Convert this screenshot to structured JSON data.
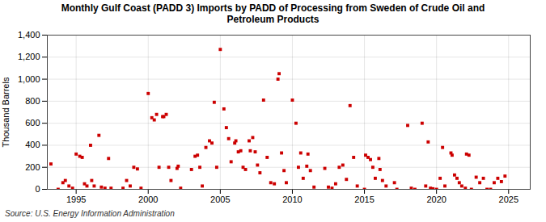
{
  "chart_data": {
    "type": "scatter",
    "title": "Monthly Gulf Coast (PADD 3) Imports by PADD of Processing from Sweden of Crude Oil and\nPetroleum Products",
    "ylabel": "Thousand Barrels",
    "caption": "Source: U.S. Energy Information Administration",
    "color": "#cc0000",
    "marker": "square",
    "grid": true,
    "xlim": [
      1993.0,
      2026.5
    ],
    "ylim": [
      0,
      1400
    ],
    "xticks": [
      1995,
      2000,
      2005,
      2010,
      2015,
      2020,
      2025
    ],
    "yticks": [
      0,
      200,
      400,
      600,
      800,
      {
        "value": 1000,
        "label": "1,000"
      },
      {
        "value": 1200,
        "label": "1,200"
      },
      {
        "value": 1400,
        "label": "1,400"
      }
    ],
    "x": [
      1993.25,
      1993.75,
      1994.08,
      1994.25,
      1994.5,
      1994.75,
      1995.0,
      1995.25,
      1995.42,
      1995.58,
      1995.75,
      1996.0,
      1996.08,
      1996.25,
      1996.58,
      1996.75,
      1997.0,
      1997.25,
      1997.42,
      1998.25,
      1998.5,
      1998.75,
      1999.0,
      1999.25,
      1999.5,
      2000.0,
      2000.25,
      2000.42,
      2000.58,
      2000.75,
      2001.0,
      2001.08,
      2001.25,
      2001.42,
      2001.58,
      2002.0,
      2002.08,
      2002.25,
      2003.0,
      2003.25,
      2003.42,
      2003.58,
      2003.75,
      2004.0,
      2004.25,
      2004.42,
      2004.58,
      2004.75,
      2005.0,
      2005.25,
      2005.42,
      2005.58,
      2005.75,
      2006.0,
      2006.08,
      2006.25,
      2006.42,
      2006.58,
      2006.75,
      2007.0,
      2007.08,
      2007.25,
      2007.42,
      2007.58,
      2007.75,
      2008.0,
      2008.25,
      2008.5,
      2008.75,
      2009.0,
      2009.08,
      2009.25,
      2009.42,
      2009.58,
      2010.0,
      2010.25,
      2010.42,
      2010.58,
      2010.75,
      2011.0,
      2011.08,
      2011.25,
      2011.5,
      2012.25,
      2012.5,
      2012.75,
      2013.0,
      2013.25,
      2013.5,
      2013.75,
      2014.0,
      2014.25,
      2014.5,
      2015.0,
      2015.08,
      2015.25,
      2015.42,
      2015.58,
      2015.75,
      2016.0,
      2016.08,
      2016.25,
      2016.5,
      2017.08,
      2017.25,
      2018.0,
      2018.25,
      2018.5,
      2019.0,
      2019.25,
      2019.42,
      2019.58,
      2019.75,
      2020.0,
      2020.25,
      2020.42,
      2020.58,
      2021.0,
      2021.08,
      2021.25,
      2021.42,
      2021.58,
      2021.75,
      2022.0,
      2022.08,
      2022.25,
      2022.42,
      2022.75,
      2023.0,
      2023.25,
      2023.5,
      2023.75,
      2024.0,
      2024.25,
      2024.5,
      2024.75
    ],
    "values": [
      230,
      0,
      60,
      80,
      30,
      10,
      320,
      300,
      290,
      50,
      30,
      400,
      80,
      30,
      490,
      20,
      10,
      280,
      10,
      10,
      80,
      30,
      200,
      185,
      10,
      870,
      650,
      630,
      680,
      200,
      660,
      660,
      680,
      200,
      80,
      190,
      210,
      10,
      180,
      300,
      310,
      200,
      30,
      380,
      440,
      420,
      790,
      200,
      1270,
      730,
      560,
      460,
      250,
      420,
      440,
      340,
      350,
      200,
      180,
      440,
      350,
      470,
      340,
      220,
      150,
      810,
      290,
      60,
      50,
      1000,
      1050,
      330,
      170,
      60,
      810,
      600,
      200,
      330,
      100,
      210,
      320,
      170,
      20,
      190,
      20,
      10,
      50,
      200,
      220,
      90,
      760,
      290,
      30,
      0,
      310,
      290,
      270,
      200,
      100,
      280,
      180,
      80,
      30,
      60,
      0,
      580,
      10,
      0,
      600,
      30,
      430,
      10,
      5,
      0,
      100,
      380,
      30,
      330,
      310,
      130,
      100,
      60,
      30,
      10,
      320,
      310,
      0,
      110,
      60,
      100,
      0,
      0,
      60,
      100,
      70,
      120
    ]
  }
}
